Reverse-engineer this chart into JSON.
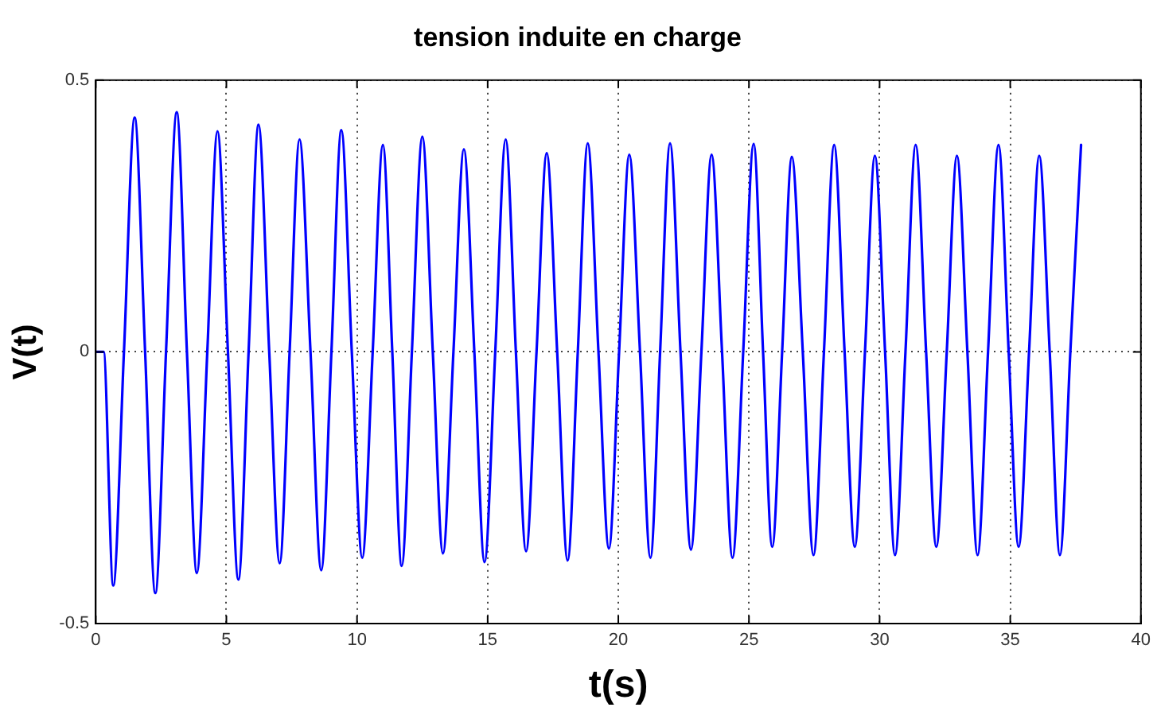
{
  "chart_data": {
    "type": "line",
    "title": "tension induite en charge",
    "xlabel": "t(s)",
    "ylabel": "V(t)",
    "xlim": [
      0,
      40
    ],
    "xticks": [
      0,
      5,
      10,
      15,
      20,
      25,
      30,
      35,
      40
    ],
    "ylim": [
      -0.5,
      0.5
    ],
    "yticks": [
      -0.5,
      0,
      0.5
    ],
    "grid": true,
    "legend": false,
    "marker": "none",
    "line_style": "solid",
    "series": [
      {
        "color": "#0000ff",
        "x": [
          0,
          0.3,
          0.67,
          1.08,
          1.49,
          1.89,
          2.28,
          2.69,
          3.1,
          3.49,
          3.87,
          4.27,
          4.66,
          5.06,
          5.46,
          5.85,
          6.23,
          6.64,
          7.04,
          7.42,
          7.8,
          8.22,
          8.63,
          9.02,
          9.4,
          9.8,
          10.2,
          10.6,
          10.99,
          11.35,
          11.71,
          12.1,
          12.5,
          12.9,
          13.29,
          13.69,
          14.09,
          14.49,
          14.88,
          15.29,
          15.69,
          16.08,
          16.47,
          16.87,
          17.26,
          17.66,
          18.06,
          18.45,
          18.83,
          19.24,
          19.64,
          20.03,
          20.42,
          20.83,
          21.23,
          21.6,
          21.98,
          22.38,
          22.78,
          23.18,
          23.57,
          23.97,
          24.37,
          24.78,
          25.18,
          25.54,
          25.89,
          26.27,
          26.64,
          27.06,
          27.47,
          27.87,
          28.26,
          28.66,
          29.05,
          29.44,
          29.82,
          30.21,
          30.59,
          30.99,
          31.38,
          31.78,
          32.17,
          32.57,
          32.96,
          33.36,
          33.75,
          34.15,
          34.55,
          34.94,
          35.32,
          35.72,
          36.11,
          36.51,
          36.9,
          37.3,
          37.71
        ],
        "values": [
          0,
          0,
          -0.43,
          0,
          0.431,
          0,
          -0.444,
          0,
          0.441,
          0,
          -0.407,
          0,
          0.406,
          0,
          -0.419,
          0,
          0.418,
          0,
          -0.389,
          0,
          0.391,
          0,
          -0.402,
          0,
          0.408,
          0,
          -0.379,
          0,
          0.381,
          0,
          -0.394,
          0,
          0.396,
          0,
          -0.371,
          0,
          0.373,
          0,
          -0.387,
          0,
          0.391,
          0,
          -0.367,
          0,
          0.366,
          0,
          -0.384,
          0,
          0.384,
          0,
          -0.362,
          0,
          0.363,
          0,
          -0.379,
          0,
          0.384,
          0,
          -0.364,
          0,
          0.363,
          0,
          -0.379,
          0,
          0.383,
          0,
          -0.359,
          0,
          0.359,
          0,
          -0.374,
          0,
          0.381,
          0,
          -0.359,
          0,
          0.361,
          0,
          -0.374,
          0,
          0.381,
          0,
          -0.359,
          0,
          0.361,
          0,
          -0.374,
          0,
          0.381,
          0,
          -0.359,
          0,
          0.361,
          0,
          -0.374,
          0,
          0.381
        ]
      }
    ]
  }
}
